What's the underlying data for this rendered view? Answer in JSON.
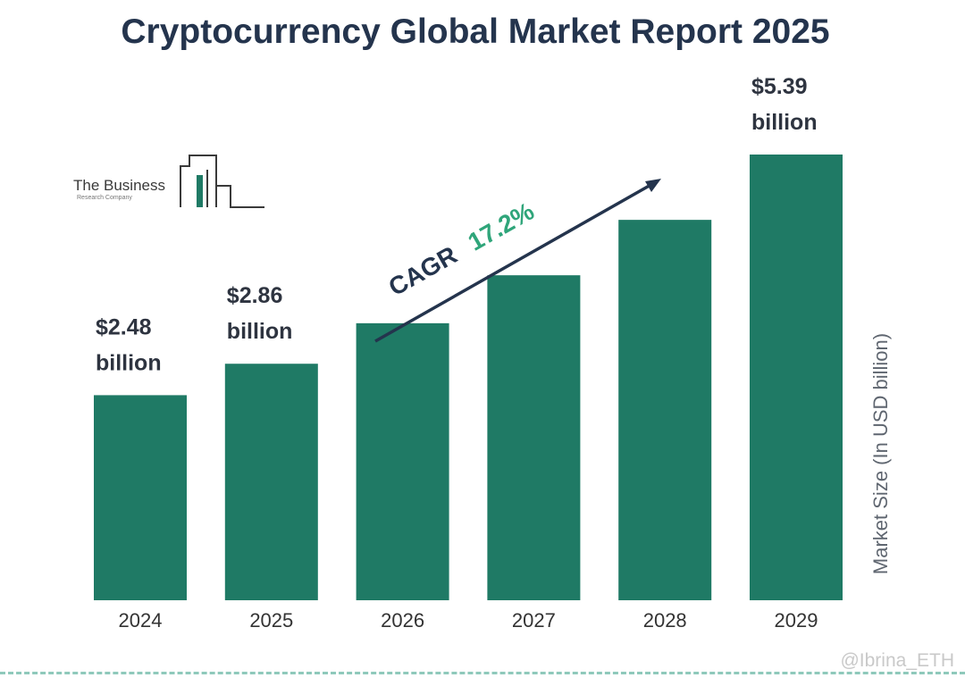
{
  "chart_data": {
    "type": "bar",
    "title": "Cryptocurrency Global Market Report 2025",
    "categories": [
      "2024",
      "2025",
      "2026",
      "2027",
      "2028",
      "2029"
    ],
    "values": [
      2.48,
      2.86,
      3.35,
      3.93,
      4.6,
      5.39
    ],
    "data_labels": [
      {
        "index": 0,
        "value": "$2.48",
        "unit": "billion"
      },
      {
        "index": 1,
        "value": "$2.86",
        "unit": "billion"
      },
      {
        "index": 5,
        "value": "$5.39",
        "unit": "billion"
      }
    ],
    "ylabel": "Market Size (In USD billion)",
    "xlabel": "",
    "ylim": [
      0,
      5.39
    ],
    "grid": false,
    "legend": "none",
    "bar_color": "#1f7a65",
    "annotation": {
      "label": "CAGR",
      "value": "17.2%",
      "value_color": "#2fa57a",
      "label_color": "#24344d"
    }
  },
  "logo": {
    "text": "The Business",
    "subtext": "Research Company"
  },
  "watermark": "@Ibrina_ETH"
}
